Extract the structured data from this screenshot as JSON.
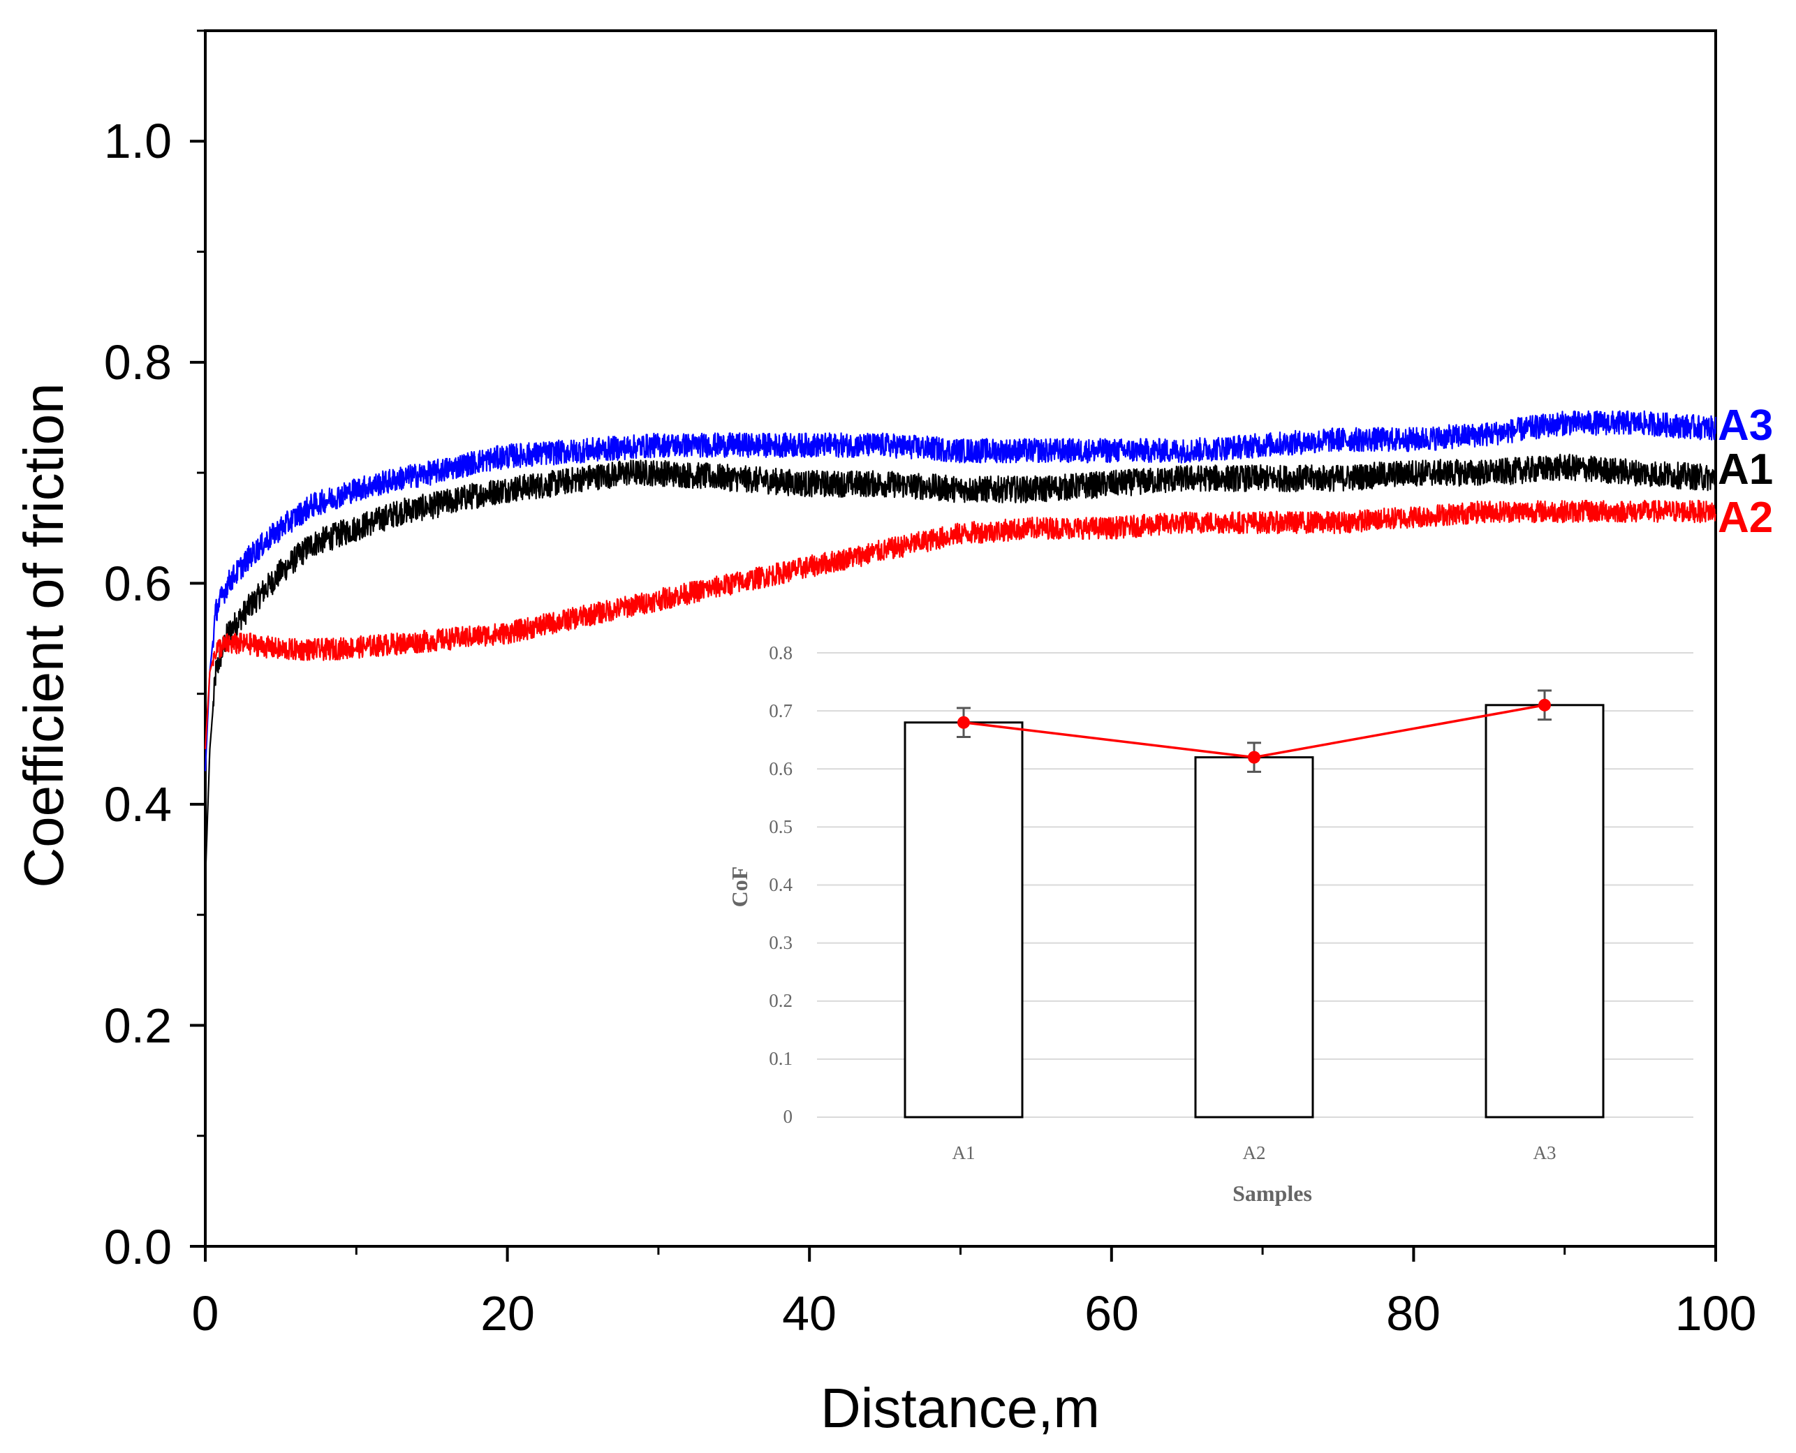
{
  "chart_data": [
    {
      "type": "line",
      "title": "",
      "xlabel": "Distance,m",
      "ylabel": "Coefficient of friction",
      "xlim": [
        0,
        100
      ],
      "ylim": [
        0,
        1.1
      ],
      "xticks": [
        0,
        20,
        40,
        60,
        80,
        100
      ],
      "xtick_labels": [
        "0",
        "20",
        "40",
        "60",
        "80",
        "100"
      ],
      "yticks": [
        0.0,
        0.2,
        0.4,
        0.6,
        0.8,
        1.0
      ],
      "ytick_labels": [
        "0.0",
        "0.2",
        "0.4",
        "0.6",
        "0.8",
        "1.0"
      ],
      "series": [
        {
          "name": "A1",
          "color": "#000000",
          "x": [
            0,
            0.3,
            0.7,
            1.5,
            3,
            5,
            7,
            10,
            13,
            15,
            18,
            20,
            23,
            25,
            28,
            30,
            35,
            40,
            45,
            50,
            55,
            60,
            65,
            70,
            75,
            80,
            85,
            90,
            95,
            100
          ],
          "y": [
            0.33,
            0.45,
            0.52,
            0.555,
            0.58,
            0.61,
            0.635,
            0.65,
            0.665,
            0.67,
            0.68,
            0.685,
            0.69,
            0.695,
            0.7,
            0.7,
            0.695,
            0.69,
            0.69,
            0.685,
            0.685,
            0.69,
            0.695,
            0.695,
            0.695,
            0.7,
            0.7,
            0.705,
            0.7,
            0.695
          ],
          "noise": 0.012
        },
        {
          "name": "A2",
          "color": "#ff0000",
          "x": [
            0,
            0.3,
            0.7,
            1.5,
            3,
            5,
            8,
            10,
            15,
            20,
            25,
            30,
            35,
            40,
            45,
            50,
            55,
            60,
            65,
            70,
            75,
            80,
            85,
            90,
            95,
            100
          ],
          "y": [
            0.45,
            0.52,
            0.54,
            0.545,
            0.545,
            0.54,
            0.54,
            0.542,
            0.548,
            0.555,
            0.57,
            0.585,
            0.6,
            0.615,
            0.63,
            0.645,
            0.65,
            0.65,
            0.655,
            0.655,
            0.655,
            0.66,
            0.665,
            0.665,
            0.665,
            0.665
          ],
          "noise": 0.01
        },
        {
          "name": "A3",
          "color": "#0000ff",
          "x": [
            0,
            0.3,
            0.7,
            1.5,
            3,
            5,
            7,
            10,
            13,
            15,
            18,
            20,
            25,
            30,
            35,
            40,
            45,
            50,
            55,
            60,
            65,
            70,
            75,
            80,
            85,
            90,
            95,
            100
          ],
          "y": [
            0.43,
            0.52,
            0.575,
            0.6,
            0.625,
            0.65,
            0.67,
            0.685,
            0.695,
            0.7,
            0.71,
            0.715,
            0.72,
            0.725,
            0.725,
            0.725,
            0.725,
            0.72,
            0.72,
            0.72,
            0.72,
            0.725,
            0.73,
            0.73,
            0.735,
            0.745,
            0.745,
            0.74
          ],
          "noise": 0.011
        }
      ],
      "series_labels": [
        "A3",
        "A1",
        "A2"
      ]
    },
    {
      "type": "bar",
      "title": "",
      "xlabel": "Samples",
      "ylabel": "CoF",
      "categories": [
        "A1",
        "A2",
        "A3"
      ],
      "values": [
        0.68,
        0.62,
        0.71
      ],
      "error": [
        0.025,
        0.025,
        0.025
      ],
      "overlay_line_values": [
        0.68,
        0.62,
        0.71
      ],
      "overlay_color": "#ff0000",
      "ylim": [
        0,
        0.8
      ],
      "yticks": [
        0,
        0.1,
        0.2,
        0.3,
        0.4,
        0.5,
        0.6,
        0.7,
        0.8
      ],
      "ytick_labels": [
        "0",
        "0.1",
        "0.2",
        "0.3",
        "0.4",
        "0.5",
        "0.6",
        "0.7",
        "0.8"
      ],
      "grid": true
    }
  ]
}
